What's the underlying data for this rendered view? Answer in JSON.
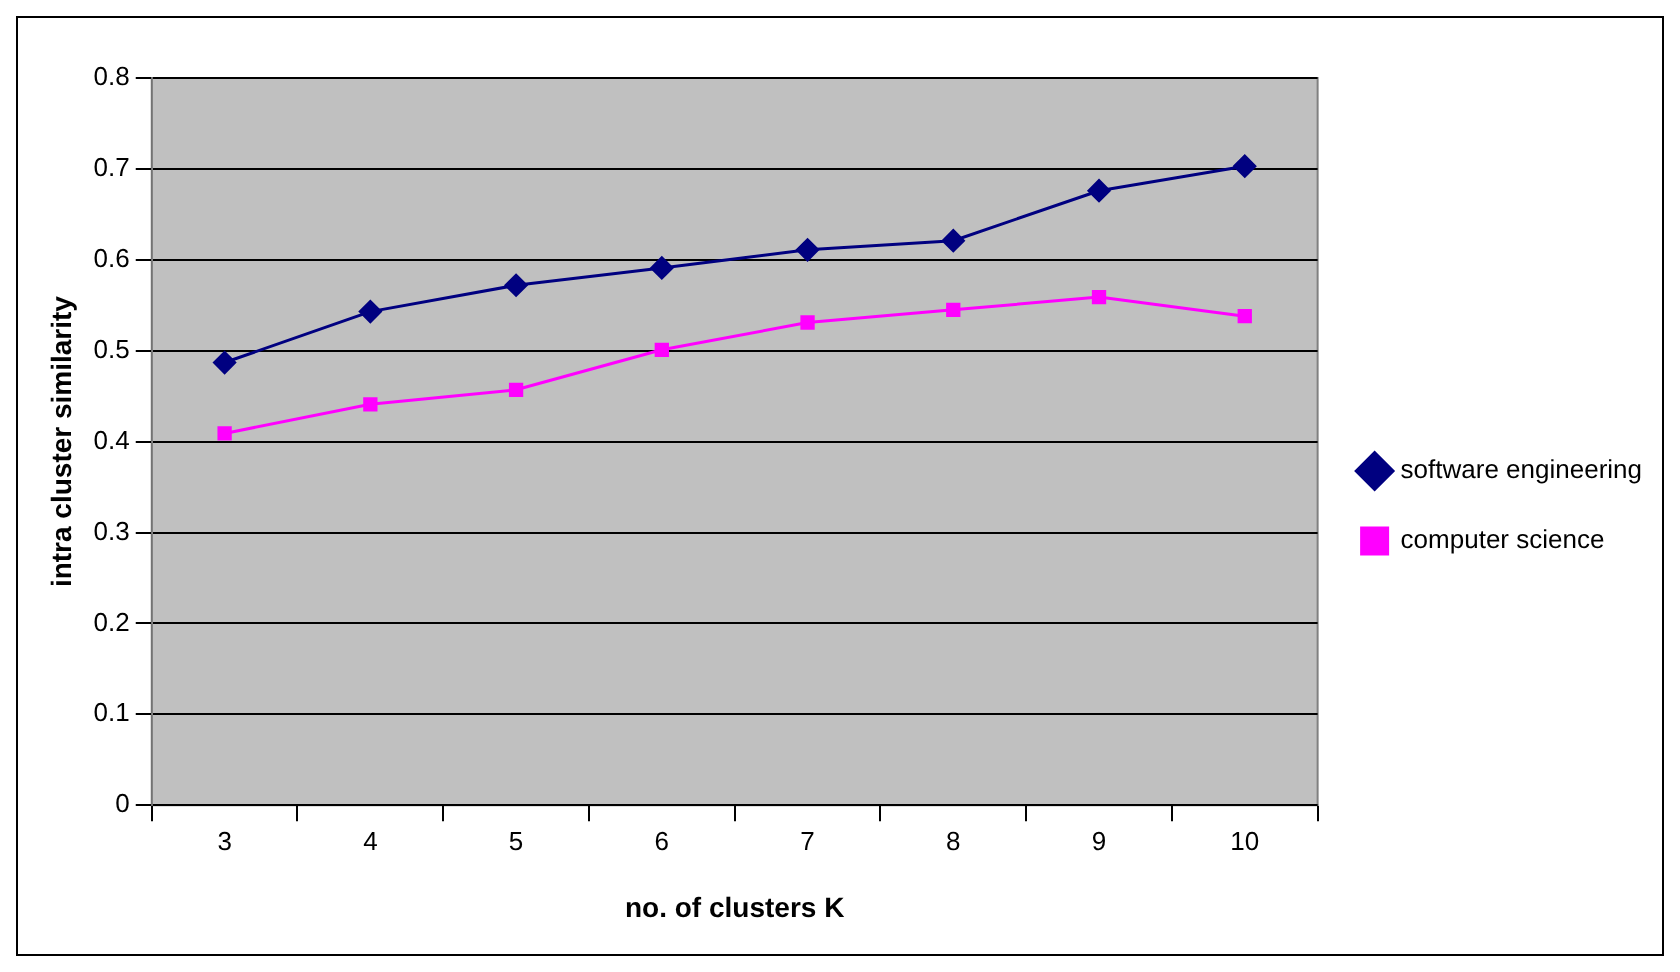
{
  "chart_data": {
    "type": "line",
    "xlabel": "no. of clusters K",
    "ylabel": "intra cluster similarity",
    "categories": [
      "3",
      "4",
      "5",
      "6",
      "7",
      "8",
      "9",
      "10"
    ],
    "series": [
      {
        "name": "software engineering",
        "color": "#000080",
        "marker": "diamond",
        "values": [
          0.487,
          0.543,
          0.572,
          0.591,
          0.611,
          0.621,
          0.676,
          0.703
        ]
      },
      {
        "name": "computer science",
        "color": "#ff00ff",
        "marker": "square",
        "values": [
          0.409,
          0.441,
          0.457,
          0.501,
          0.531,
          0.545,
          0.559,
          0.538
        ]
      }
    ],
    "ylim": [
      0,
      0.8
    ],
    "yticks": [
      0,
      0.1,
      0.2,
      0.3,
      0.4,
      0.5,
      0.6,
      0.7,
      0.8
    ],
    "grid": "y",
    "legend": "right"
  }
}
